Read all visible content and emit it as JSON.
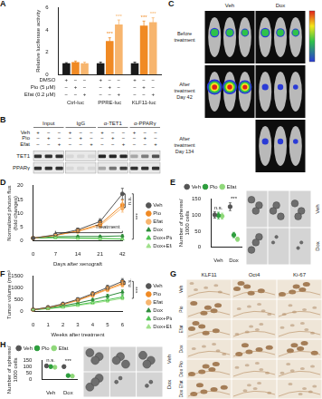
{
  "chart_data": [
    {
      "panel": "A",
      "type": "bar",
      "y_label": "Relative luciferase activity",
      "categories": [
        "Ctrl-luc",
        "PPRE-luc",
        "KLF11-luc"
      ],
      "series": [
        {
          "name": "DMSO",
          "color": "#1a1a1a",
          "values": [
            1,
            1,
            1
          ],
          "errors": [
            0.05,
            0.1,
            0.1
          ],
          "marks": [
            "+",
            "−",
            "−",
            "+",
            "−",
            "−",
            "+",
            "−",
            "−"
          ]
        },
        {
          "name": "Pio (5 μM)",
          "color": "#f08a24",
          "values": [
            1.1,
            3.0,
            4.4
          ],
          "errors": [
            0.1,
            0.3,
            0.4
          ],
          "marks": [
            "−",
            "+",
            "−",
            "−",
            "+",
            "−",
            "−",
            "+",
            "−"
          ]
        },
        {
          "name": "Efat (0.2 μM)",
          "color": "#f7b56e",
          "values": [
            1.0,
            4.5,
            4.7
          ],
          "errors": [
            0.1,
            0.4,
            0.4
          ],
          "marks": [
            "−",
            "−",
            "+",
            "−",
            "−",
            "+",
            "−",
            "−",
            "+"
          ]
        }
      ],
      "ylim": [
        0,
        6
      ],
      "yticks": [
        0,
        2,
        4,
        6
      ],
      "grid": false,
      "annotations": [
        {
          "text": "***",
          "category": "PPRE-luc",
          "series": "Pio (5 μM)"
        },
        {
          "text": "***",
          "category": "PPRE-luc",
          "series": "Efat (0.2 μM)"
        },
        {
          "text": "***",
          "category": "KLF11-luc",
          "series": "Pio (5 μM)"
        },
        {
          "text": "***",
          "category": "KLF11-luc",
          "series": "Efat (0.2 μM)"
        }
      ]
    },
    {
      "panel": "D",
      "type": "line",
      "x_label": "Days after xenograft",
      "y_label": [
        "Normalized photon flux",
        "(fold changes)"
      ],
      "categories": [
        "0",
        "7",
        "14",
        "21",
        "42"
      ],
      "series": [
        {
          "name": "Veh",
          "color": "#555555",
          "marker": "circle",
          "values": [
            1,
            2.2,
            4,
            7,
            17
          ],
          "errors": [
            0,
            0.3,
            0.6,
            1.0,
            2.0
          ]
        },
        {
          "name": "Pio",
          "color": "#f08a24",
          "marker": "circle",
          "values": [
            1,
            2,
            3.6,
            6,
            13
          ],
          "errors": [
            0,
            0.3,
            0.5,
            0.9,
            1.8
          ]
        },
        {
          "name": "Efat",
          "color": "#f7b56e",
          "marker": "circle",
          "values": [
            1,
            2,
            3.4,
            5.5,
            12
          ],
          "errors": [
            0,
            0.3,
            0.5,
            0.8,
            1.6
          ]
        },
        {
          "name": "Dox",
          "color": "#2e8b3a",
          "marker": "triangle",
          "values": [
            1,
            1.5,
            1.6,
            1.6,
            1.8
          ],
          "errors": [
            0,
            0.2,
            0.3,
            0.3,
            0.4
          ]
        },
        {
          "name": "Dox+Pio",
          "color": "#4cc34f",
          "marker": "triangle",
          "values": [
            1,
            1.2,
            1,
            0.9,
            0.7
          ],
          "errors": [
            0,
            0.2,
            0.2,
            0.2,
            0.2
          ]
        },
        {
          "name": "Dox+Efat",
          "color": "#9fe08a",
          "marker": "triangle",
          "values": [
            1,
            1.1,
            0.9,
            0.8,
            0.6
          ],
          "errors": [
            0,
            0.2,
            0.2,
            0.2,
            0.2
          ]
        }
      ],
      "ylim": [
        0,
        20
      ],
      "yticks": [
        0,
        5,
        10,
        15,
        20
      ],
      "grid": false,
      "legend": "right",
      "annotations": [
        {
          "text": "Treatment",
          "from": "7",
          "to": "42"
        },
        {
          "text": "n.s.",
          "series": [
            "Veh",
            "Efat"
          ],
          "at": "42"
        },
        {
          "text": "***",
          "series": [
            "Veh",
            "Dox+Efat"
          ],
          "at": "42"
        }
      ]
    },
    {
      "panel": "E",
      "type": "scatter",
      "y_label": [
        "Number of spheres/",
        "1000 cells"
      ],
      "categories": [
        "Veh",
        "Dox"
      ],
      "series": [
        {
          "name": "Veh",
          "color": "#555555",
          "marker": "circle",
          "values": [
            100,
            125
          ],
          "errors": [
            10,
            12
          ]
        },
        {
          "name": "Pio",
          "color": "#2e9e3e",
          "marker": "circle",
          "values": [
            98,
            38
          ],
          "errors": [
            10,
            8
          ]
        },
        {
          "name": "Efat",
          "color": "#8fd87a",
          "marker": "circle",
          "values": [
            96,
            25
          ],
          "errors": [
            9,
            6
          ]
        }
      ],
      "ylim": [
        0,
        150
      ],
      "yticks": [
        0,
        50,
        100,
        150
      ],
      "grid": false,
      "legend": "top",
      "annotations": [
        {
          "text": "n.s.",
          "category": "Veh"
        },
        {
          "text": "***",
          "category": "Dox"
        }
      ]
    },
    {
      "panel": "F",
      "type": "line",
      "x_label": "Weeks after treatment",
      "y_label": "Tumor volume (mm³)",
      "categories": [
        "0",
        "1",
        "2",
        "3",
        "4",
        "5",
        "6"
      ],
      "series": [
        {
          "name": "Veh",
          "color": "#555555",
          "marker": "circle",
          "values": [
            80,
            180,
            330,
            520,
            760,
            1020,
            1280
          ],
          "errors": [
            10,
            25,
            40,
            60,
            80,
            100,
            120
          ]
        },
        {
          "name": "Pio",
          "color": "#f08a24",
          "marker": "circle",
          "values": [
            80,
            170,
            310,
            490,
            720,
            960,
            1200
          ],
          "errors": [
            10,
            20,
            35,
            55,
            75,
            95,
            110
          ]
        },
        {
          "name": "Efat",
          "color": "#f7b56e",
          "marker": "circle",
          "values": [
            80,
            170,
            300,
            470,
            690,
            930,
            1150
          ],
          "errors": [
            10,
            20,
            35,
            50,
            70,
            90,
            105
          ]
        },
        {
          "name": "Dox",
          "color": "#2e8b3a",
          "marker": "triangle",
          "values": [
            80,
            150,
            250,
            360,
            500,
            660,
            830
          ],
          "errors": [
            10,
            20,
            30,
            40,
            55,
            70,
            85
          ]
        },
        {
          "name": "Dox+Pio",
          "color": "#4cc34f",
          "marker": "triangle",
          "values": [
            80,
            130,
            200,
            290,
            390,
            500,
            620
          ],
          "errors": [
            10,
            15,
            25,
            35,
            45,
            55,
            65
          ]
        },
        {
          "name": "Dox+Efat",
          "color": "#9fe08a",
          "marker": "triangle",
          "values": [
            80,
            120,
            180,
            260,
            350,
            450,
            560
          ],
          "errors": [
            10,
            15,
            20,
            30,
            40,
            50,
            60
          ]
        }
      ],
      "ylim": [
        0,
        1500
      ],
      "yticks": [
        0,
        500,
        1000,
        1500
      ],
      "grid": false,
      "legend": "right",
      "annotations": [
        {
          "text": "n.s.",
          "series": [
            "Veh",
            "Efat"
          ],
          "at": "6"
        },
        {
          "text": "***",
          "series": [
            "Veh",
            "Dox+Efat"
          ],
          "at": "6"
        }
      ]
    },
    {
      "panel": "H",
      "type": "scatter",
      "y_label": [
        "Number of spheres/",
        "1000 cells"
      ],
      "categories": [
        "Veh",
        "Dox"
      ],
      "series": [
        {
          "name": "Veh",
          "color": "#555555",
          "marker": "circle",
          "values": [
            105,
            100
          ],
          "errors": [
            12,
            12
          ]
        },
        {
          "name": "Pio",
          "color": "#2e9e3e",
          "marker": "circle",
          "values": [
            100,
            32
          ],
          "errors": [
            11,
            7
          ]
        },
        {
          "name": "Efat",
          "color": "#8fd87a",
          "marker": "circle",
          "values": [
            95,
            28
          ],
          "errors": [
            10,
            6
          ]
        }
      ],
      "ylim": [
        0,
        150
      ],
      "yticks": [
        0,
        50,
        100,
        150
      ],
      "grid": false,
      "legend": "top",
      "annotations": [
        {
          "text": "n.s.",
          "category": "Veh"
        },
        {
          "text": "***",
          "category": "Dox"
        }
      ]
    }
  ],
  "figures": [
    {
      "panel": "B",
      "type": "blot",
      "columns": [
        "Input",
        "IgG",
        "α-TET1",
        "α-PPARγ"
      ],
      "treatments": [
        {
          "name": "Veh",
          "marks": [
            "+",
            "−",
            "−",
            "+",
            "−",
            "−",
            "+",
            "−",
            "−",
            "+",
            "−",
            "−"
          ]
        },
        {
          "name": "Pio",
          "marks": [
            "−",
            "+",
            "−",
            "−",
            "+",
            "−",
            "−",
            "+",
            "−",
            "−",
            "+",
            "−"
          ]
        },
        {
          "name": "Efat",
          "marks": [
            "−",
            "−",
            "+",
            "−",
            "−",
            "+",
            "−",
            "−",
            "+",
            "−",
            "−",
            "+"
          ]
        }
      ],
      "rows": [
        "TET1",
        "PPARγ"
      ]
    },
    {
      "panel": "C",
      "type": "images",
      "columns": [
        "Veh",
        "Dox"
      ],
      "rows": [
        {
          "label": [
            "Before",
            "treatment"
          ],
          "present": [
            true,
            true
          ]
        },
        {
          "label": [
            "After",
            "treatment",
            "Day 42"
          ],
          "present": [
            true,
            true
          ]
        },
        {
          "label": [
            "After",
            "treatment",
            "Day 134"
          ],
          "present": [
            false,
            true
          ]
        }
      ]
    },
    {
      "panel": "E",
      "type": "images",
      "rows": [
        "Veh",
        "Dox"
      ]
    },
    {
      "panel": "G",
      "type": "images",
      "columns": [
        "KLF11",
        "Oct4",
        "Ki-67"
      ],
      "rows": [
        "Veh",
        "Pio",
        "Efat",
        "Dox",
        "Dox Pio",
        "Dox Efat"
      ]
    },
    {
      "panel": "H",
      "type": "images",
      "rows": [
        "Veh",
        "Dox"
      ]
    }
  ]
}
